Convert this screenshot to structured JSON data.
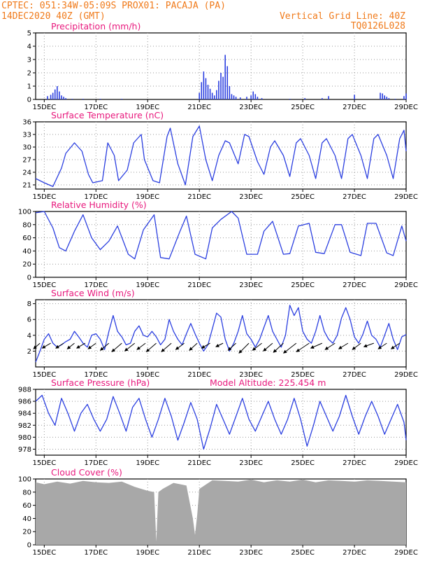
{
  "header": {
    "line1_left": "CPTEC:  051:34W-05:09S  PROX01: PACAJA (PA)",
    "line2_left": "14DEC2020 40Z (GMT)",
    "line1_right": "Vertical Grid Line: 40Z",
    "line2_right": "TQ0126L028"
  },
  "colors": {
    "header": "#f07a1a",
    "panel_title": "#e8197d",
    "series": "#2b3fe0",
    "cloud": "#a8a8a8",
    "wind_vector": "#000000"
  },
  "x_axis": {
    "start": "2020-12-14T16:00Z",
    "end": "2020-12-29T00:00Z",
    "ticks": [
      {
        "date": "2020-12-15",
        "label": "15DEC"
      },
      {
        "date": "2020-12-17",
        "label": "17DEC"
      },
      {
        "date": "2020-12-19",
        "label": "19DEC"
      },
      {
        "date": "2020-12-21",
        "label": "21DEC"
      },
      {
        "date": "2020-12-23",
        "label": "23DEC"
      },
      {
        "date": "2020-12-25",
        "label": "25DEC"
      },
      {
        "date": "2020-12-27",
        "label": "27DEC"
      },
      {
        "date": "2020-12-29",
        "label": "29DEC"
      }
    ]
  },
  "chart_data": [
    {
      "id": "precip",
      "type": "bar",
      "title": "Precipitation (mm/h)",
      "ylim": [
        0,
        5
      ],
      "yticks": [
        0,
        1,
        2,
        3,
        4,
        5
      ],
      "grid": true,
      "x": [
        "2020-12-15T03:00",
        "2020-12-15T06:00",
        "2020-12-15T08:00",
        "2020-12-15T10:00",
        "2020-12-15T12:00",
        "2020-12-15T14:00",
        "2020-12-15T16:00",
        "2020-12-15T18:00",
        "2020-12-15T20:00",
        "2020-12-16T02:00",
        "2020-12-16T12:00",
        "2020-12-17T04:00",
        "2020-12-18T00:00",
        "2020-12-21T00:00",
        "2020-12-21T02:00",
        "2020-12-21T04:00",
        "2020-12-21T06:00",
        "2020-12-21T08:00",
        "2020-12-21T10:00",
        "2020-12-21T12:00",
        "2020-12-21T14:00",
        "2020-12-21T16:00",
        "2020-12-21T18:00",
        "2020-12-21T20:00",
        "2020-12-21T22:00",
        "2020-12-22T00:00",
        "2020-12-22T02:00",
        "2020-12-22T04:00",
        "2020-12-22T06:00",
        "2020-12-22T08:00",
        "2020-12-22T10:00",
        "2020-12-22T14:00",
        "2020-12-22T20:00",
        "2020-12-23T00:00",
        "2020-12-23T02:00",
        "2020-12-23T04:00",
        "2020-12-23T06:00",
        "2020-12-23T10:00",
        "2020-12-24T12:00",
        "2020-12-25T02:00",
        "2020-12-25T18:00",
        "2020-12-26T00:00",
        "2020-12-27T00:00",
        "2020-12-28T00:00",
        "2020-12-28T02:00",
        "2020-12-28T04:00",
        "2020-12-28T06:00",
        "2020-12-28T08:00",
        "2020-12-28T14:00",
        "2020-12-28T22:00",
        "2020-12-29T00:00"
      ],
      "values": [
        0.25,
        0.35,
        0.5,
        0.75,
        1.0,
        0.6,
        0.3,
        0.2,
        0.1,
        0.05,
        0.05,
        0.05,
        0.05,
        0.5,
        1.3,
        2.1,
        1.6,
        1.1,
        0.8,
        0.5,
        0.3,
        0.7,
        1.4,
        2.0,
        1.7,
        3.35,
        2.5,
        1.0,
        0.4,
        0.3,
        0.2,
        0.15,
        0.2,
        0.3,
        0.6,
        0.4,
        0.2,
        0.1,
        0.05,
        0.1,
        0.1,
        0.25,
        0.35,
        0.5,
        0.45,
        0.3,
        0.2,
        0.1,
        0.05,
        0.25,
        0.45
      ]
    },
    {
      "id": "temp",
      "type": "line",
      "title": "Surface Temperature (nC)",
      "ylim": [
        20,
        36
      ],
      "yticks": [
        21,
        24,
        27,
        30,
        33,
        36
      ],
      "grid": true,
      "x": [
        "2020-12-14T16:00",
        "2020-12-15T00:00",
        "2020-12-15T08:00",
        "2020-12-15T16:00",
        "2020-12-15T20:00",
        "2020-12-16T04:00",
        "2020-12-16T11:00",
        "2020-12-16T17:00",
        "2020-12-16T21:00",
        "2020-12-17T06:00",
        "2020-12-17T11:00",
        "2020-12-17T17:00",
        "2020-12-17T21:00",
        "2020-12-18T05:00",
        "2020-12-18T11:00",
        "2020-12-18T18:00",
        "2020-12-18T21:00",
        "2020-12-19T05:00",
        "2020-12-19T11:00",
        "2020-12-19T18:00",
        "2020-12-19T21:00",
        "2020-12-20T04:00",
        "2020-12-20T11:00",
        "2020-12-20T18:00",
        "2020-12-21T00:00",
        "2020-12-21T06:00",
        "2020-12-21T12:00",
        "2020-12-21T18:00",
        "2020-12-22T00:00",
        "2020-12-22T04:00",
        "2020-12-22T12:00",
        "2020-12-22T18:00",
        "2020-12-22T22:00",
        "2020-12-23T06:00",
        "2020-12-23T12:00",
        "2020-12-23T18:00",
        "2020-12-23T22:00",
        "2020-12-24T06:00",
        "2020-12-24T12:00",
        "2020-12-24T18:00",
        "2020-12-24T22:00",
        "2020-12-25T06:00",
        "2020-12-25T12:00",
        "2020-12-25T18:00",
        "2020-12-25T22:00",
        "2020-12-26T06:00",
        "2020-12-26T12:00",
        "2020-12-26T18:00",
        "2020-12-26T22:00",
        "2020-12-27T06:00",
        "2020-12-27T12:00",
        "2020-12-27T18:00",
        "2020-12-27T22:00",
        "2020-12-28T06:00",
        "2020-12-28T12:00",
        "2020-12-28T18:00",
        "2020-12-28T22:00",
        "2020-12-29T00:00"
      ],
      "values": [
        22.5,
        21.5,
        20.6,
        25.0,
        28.5,
        31.0,
        29.0,
        23.5,
        21.5,
        22.0,
        31.0,
        28.0,
        22.0,
        24.5,
        31.0,
        33.0,
        27.0,
        22.0,
        21.5,
        32.5,
        34.5,
        26.0,
        21.0,
        32.5,
        35.0,
        27.0,
        22.0,
        28.0,
        31.5,
        31.0,
        26.0,
        33.0,
        32.5,
        26.5,
        23.5,
        30.0,
        31.5,
        28.0,
        23.0,
        31.0,
        32.0,
        28.0,
        22.5,
        31.0,
        32.0,
        28.0,
        22.5,
        32.0,
        33.0,
        28.0,
        22.5,
        32.0,
        33.0,
        28.0,
        22.5,
        32.0,
        34.0,
        29.0
      ]
    },
    {
      "id": "rh",
      "type": "line",
      "title": "Relative Humidity (%)",
      "ylim": [
        0,
        100
      ],
      "yticks": [
        0,
        20,
        40,
        60,
        80,
        100
      ],
      "grid": true,
      "x": [
        "2020-12-14T16:00",
        "2020-12-15T00:00",
        "2020-12-15T08:00",
        "2020-12-15T14:00",
        "2020-12-15T20:00",
        "2020-12-16T04:00",
        "2020-12-16T12:00",
        "2020-12-16T20:00",
        "2020-12-17T04:00",
        "2020-12-17T12:00",
        "2020-12-17T20:00",
        "2020-12-18T06:00",
        "2020-12-18T12:00",
        "2020-12-18T20:00",
        "2020-12-19T06:00",
        "2020-12-19T12:00",
        "2020-12-19T20:00",
        "2020-12-20T06:00",
        "2020-12-20T12:00",
        "2020-12-20T20:00",
        "2020-12-21T06:00",
        "2020-12-21T12:00",
        "2020-12-21T20:00",
        "2020-12-22T06:00",
        "2020-12-22T12:00",
        "2020-12-22T20:00",
        "2020-12-23T06:00",
        "2020-12-23T12:00",
        "2020-12-23T20:00",
        "2020-12-24T06:00",
        "2020-12-24T12:00",
        "2020-12-24T20:00",
        "2020-12-25T06:00",
        "2020-12-25T12:00",
        "2020-12-25T20:00",
        "2020-12-26T06:00",
        "2020-12-26T12:00",
        "2020-12-26T20:00",
        "2020-12-27T06:00",
        "2020-12-27T12:00",
        "2020-12-27T20:00",
        "2020-12-28T06:00",
        "2020-12-28T12:00",
        "2020-12-28T20:00",
        "2020-12-29T00:00"
      ],
      "values": [
        98,
        100,
        75,
        45,
        40,
        70,
        95,
        60,
        42,
        55,
        78,
        35,
        28,
        72,
        95,
        30,
        28,
        70,
        93,
        35,
        28,
        75,
        88,
        100,
        90,
        35,
        35,
        70,
        85,
        35,
        36,
        78,
        82,
        38,
        36,
        80,
        80,
        38,
        33,
        82,
        82,
        37,
        33,
        78,
        55
      ]
    },
    {
      "id": "wind",
      "type": "line",
      "title": "Surface Wind (m/s)",
      "ylim": [
        0,
        8.5
      ],
      "yticks": [
        2,
        4,
        6,
        8
      ],
      "grid": true,
      "x": [
        "2020-12-14T16:00",
        "2020-12-14T20:00",
        "2020-12-15T00:00",
        "2020-12-15T04:00",
        "2020-12-15T08:00",
        "2020-12-15T12:00",
        "2020-12-15T16:00",
        "2020-12-15T20:00",
        "2020-12-16T00:00",
        "2020-12-16T04:00",
        "2020-12-16T08:00",
        "2020-12-16T12:00",
        "2020-12-16T16:00",
        "2020-12-16T20:00",
        "2020-12-17T00:00",
        "2020-12-17T04:00",
        "2020-12-17T08:00",
        "2020-12-17T12:00",
        "2020-12-17T16:00",
        "2020-12-17T20:00",
        "2020-12-18T00:00",
        "2020-12-18T04:00",
        "2020-12-18T08:00",
        "2020-12-18T12:00",
        "2020-12-18T16:00",
        "2020-12-18T20:00",
        "2020-12-19T00:00",
        "2020-12-19T04:00",
        "2020-12-19T08:00",
        "2020-12-19T12:00",
        "2020-12-19T16:00",
        "2020-12-19T20:00",
        "2020-12-20T00:00",
        "2020-12-20T04:00",
        "2020-12-20T08:00",
        "2020-12-20T12:00",
        "2020-12-20T16:00",
        "2020-12-20T20:00",
        "2020-12-21T00:00",
        "2020-12-21T04:00",
        "2020-12-21T08:00",
        "2020-12-21T12:00",
        "2020-12-21T16:00",
        "2020-12-21T20:00",
        "2020-12-22T00:00",
        "2020-12-22T04:00",
        "2020-12-22T08:00",
        "2020-12-22T12:00",
        "2020-12-22T16:00",
        "2020-12-22T20:00",
        "2020-12-23T00:00",
        "2020-12-23T04:00",
        "2020-12-23T08:00",
        "2020-12-23T12:00",
        "2020-12-23T16:00",
        "2020-12-23T20:00",
        "2020-12-24T00:00",
        "2020-12-24T04:00",
        "2020-12-24T08:00",
        "2020-12-24T12:00",
        "2020-12-24T16:00",
        "2020-12-24T20:00",
        "2020-12-25T00:00",
        "2020-12-25T04:00",
        "2020-12-25T08:00",
        "2020-12-25T12:00",
        "2020-12-25T16:00",
        "2020-12-25T20:00",
        "2020-12-26T00:00",
        "2020-12-26T04:00",
        "2020-12-26T08:00",
        "2020-12-26T12:00",
        "2020-12-26T16:00",
        "2020-12-26T20:00",
        "2020-12-27T00:00",
        "2020-12-27T04:00",
        "2020-12-27T08:00",
        "2020-12-27T12:00",
        "2020-12-27T16:00",
        "2020-12-27T20:00",
        "2020-12-28T00:00",
        "2020-12-28T04:00",
        "2020-12-28T08:00",
        "2020-12-28T12:00",
        "2020-12-28T16:00",
        "2020-12-28T20:00",
        "2020-12-29T00:00"
      ],
      "values": [
        0.6,
        2.0,
        3.5,
        4.2,
        3.0,
        2.5,
        2.8,
        3.2,
        3.5,
        4.5,
        3.8,
        3.0,
        2.5,
        4.0,
        4.2,
        3.5,
        2.2,
        4.5,
        6.5,
        4.5,
        3.8,
        2.8,
        3.0,
        4.5,
        5.2,
        4.0,
        3.8,
        4.5,
        3.8,
        2.8,
        3.5,
        6.0,
        4.5,
        3.5,
        2.8,
        4.2,
        5.5,
        4.2,
        3.0,
        2.0,
        2.8,
        4.8,
        6.8,
        6.3,
        3.5,
        2.0,
        3.0,
        4.5,
        6.5,
        4.2,
        3.5,
        2.5,
        3.5,
        5.0,
        6.5,
        4.5,
        3.5,
        2.5,
        4.0,
        7.8,
        6.5,
        7.5,
        4.5,
        3.5,
        3.0,
        4.5,
        6.5,
        4.5,
        3.5,
        3.0,
        4.0,
        6.2,
        7.5,
        6.0,
        3.8,
        3.0,
        4.2,
        5.8,
        4.0,
        3.5,
        2.5,
        4.0,
        5.5,
        3.5,
        2.2,
        3.8,
        4.1
      ],
      "vectors": {
        "x": [
          "2020-12-14T20:00",
          "2020-12-15T06:00",
          "2020-12-15T18:00",
          "2020-12-16T04:00",
          "2020-12-16T14:00",
          "2020-12-17T00:00",
          "2020-12-17T12:00",
          "2020-12-18T00:00",
          "2020-12-18T12:00",
          "2020-12-18T22:00",
          "2020-12-19T08:00",
          "2020-12-19T22:00",
          "2020-12-20T10:00",
          "2020-12-20T22:00",
          "2020-12-21T10:00",
          "2020-12-21T22:00",
          "2020-12-22T10:00",
          "2020-12-22T22:00",
          "2020-12-23T10:00",
          "2020-12-23T20:00",
          "2020-12-24T06:00",
          "2020-12-24T18:00",
          "2020-12-25T06:00",
          "2020-12-25T18:00",
          "2020-12-26T06:00",
          "2020-12-26T18:00",
          "2020-12-27T06:00",
          "2020-12-27T18:00",
          "2020-12-28T06:00",
          "2020-12-28T18:00"
        ],
        "dx": [
          -9,
          -12,
          -11,
          -10,
          -12,
          -11,
          -12,
          -14,
          -14,
          -12,
          -14,
          -14,
          -12,
          -11,
          -12,
          -10,
          -11,
          -14,
          -13,
          -13,
          -14,
          -18,
          -18,
          -16,
          -14,
          -13,
          -12,
          -14,
          -12,
          -12
        ],
        "dy": [
          8,
          7,
          7,
          8,
          7,
          8,
          10,
          12,
          11,
          9,
          12,
          12,
          9,
          10,
          7,
          5,
          10,
          14,
          10,
          11,
          13,
          14,
          12,
          7,
          9,
          8,
          9,
          5,
          8,
          8
        ]
      }
    },
    {
      "id": "pres",
      "type": "line",
      "title": "Surface Pressure (hPa)",
      "annotation": "Model Altitude: 225.454 m",
      "ylim": [
        977,
        988
      ],
      "yticks": [
        978,
        980,
        982,
        984,
        986,
        988
      ],
      "grid": true,
      "x": [
        "2020-12-14T16:00",
        "2020-12-14T22:00",
        "2020-12-15T04:00",
        "2020-12-15T10:00",
        "2020-12-15T16:00",
        "2020-12-15T22:00",
        "2020-12-16T04:00",
        "2020-12-16T10:00",
        "2020-12-16T16:00",
        "2020-12-16T22:00",
        "2020-12-17T04:00",
        "2020-12-17T10:00",
        "2020-12-17T16:00",
        "2020-12-17T22:00",
        "2020-12-18T04:00",
        "2020-12-18T10:00",
        "2020-12-18T16:00",
        "2020-12-18T22:00",
        "2020-12-19T04:00",
        "2020-12-19T10:00",
        "2020-12-19T16:00",
        "2020-12-19T22:00",
        "2020-12-20T04:00",
        "2020-12-20T10:00",
        "2020-12-20T16:00",
        "2020-12-20T22:00",
        "2020-12-21T04:00",
        "2020-12-21T10:00",
        "2020-12-21T16:00",
        "2020-12-21T22:00",
        "2020-12-22T04:00",
        "2020-12-22T10:00",
        "2020-12-22T16:00",
        "2020-12-22T22:00",
        "2020-12-23T04:00",
        "2020-12-23T10:00",
        "2020-12-23T16:00",
        "2020-12-23T22:00",
        "2020-12-24T04:00",
        "2020-12-24T10:00",
        "2020-12-24T16:00",
        "2020-12-24T22:00",
        "2020-12-25T04:00",
        "2020-12-25T10:00",
        "2020-12-25T16:00",
        "2020-12-25T22:00",
        "2020-12-26T04:00",
        "2020-12-26T10:00",
        "2020-12-26T16:00",
        "2020-12-26T22:00",
        "2020-12-27T04:00",
        "2020-12-27T10:00",
        "2020-12-27T16:00",
        "2020-12-27T22:00",
        "2020-12-28T04:00",
        "2020-12-28T10:00",
        "2020-12-28T16:00",
        "2020-12-28T22:00",
        "2020-12-29T00:00"
      ],
      "values": [
        986.0,
        987.0,
        984.0,
        982.0,
        986.5,
        984.0,
        981.0,
        984.0,
        985.5,
        983.0,
        981.0,
        983.0,
        986.8,
        984.0,
        981.0,
        985.0,
        986.5,
        983.0,
        980.0,
        983.0,
        986.5,
        983.5,
        979.5,
        982.5,
        985.8,
        983.0,
        978.0,
        981.5,
        985.5,
        983.0,
        980.5,
        983.5,
        986.5,
        983.0,
        981.0,
        983.5,
        986.0,
        983.0,
        980.5,
        983.0,
        986.5,
        983.0,
        978.5,
        982.0,
        986.0,
        983.5,
        981.0,
        983.5,
        987.0,
        983.5,
        980.5,
        983.5,
        986.0,
        983.5,
        980.5,
        983.0,
        985.5,
        982.5,
        979.5
      ]
    },
    {
      "id": "cloud",
      "type": "area",
      "title": "Cloud Cover (%)",
      "ylim": [
        0,
        100
      ],
      "yticks": [
        0,
        20,
        40,
        60,
        80,
        100
      ],
      "grid": true,
      "x": [
        "2020-12-14T16:00",
        "2020-12-15T00:00",
        "2020-12-15T12:00",
        "2020-12-16T00:00",
        "2020-12-16T12:00",
        "2020-12-17T00:00",
        "2020-12-17T12:00",
        "2020-12-18T00:00",
        "2020-12-18T12:00",
        "2020-12-19T00:00",
        "2020-12-19T06:00",
        "2020-12-19T08:00",
        "2020-12-19T10:00",
        "2020-12-19T14:00",
        "2020-12-20T00:00",
        "2020-12-20T12:00",
        "2020-12-20T18:00",
        "2020-12-20T20:00",
        "2020-12-20T22:00",
        "2020-12-21T00:00",
        "2020-12-21T12:00",
        "2020-12-22T00:00",
        "2020-12-22T12:00",
        "2020-12-23T00:00",
        "2020-12-23T12:00",
        "2020-12-24T00:00",
        "2020-12-24T12:00",
        "2020-12-25T00:00",
        "2020-12-25T12:00",
        "2020-12-26T00:00",
        "2020-12-26T12:00",
        "2020-12-27T00:00",
        "2020-12-27T12:00",
        "2020-12-28T00:00",
        "2020-12-28T12:00",
        "2020-12-29T00:00"
      ],
      "values": [
        95,
        92,
        96,
        93,
        97,
        95,
        94,
        96,
        88,
        82,
        80,
        5,
        80,
        85,
        94,
        90,
        40,
        15,
        45,
        85,
        98,
        97,
        96,
        99,
        95,
        98,
        96,
        99,
        95,
        98,
        97,
        96,
        98,
        97,
        96,
        95
      ]
    }
  ]
}
